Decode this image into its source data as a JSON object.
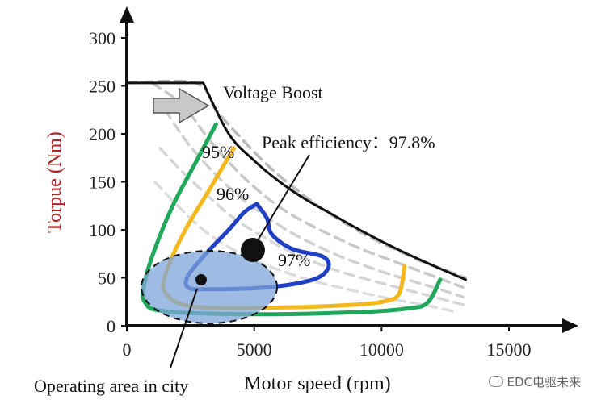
{
  "chart_data": {
    "type": "line",
    "xlabel": "Motor speed (rpm)",
    "ylabel": "Torpue (Nm)",
    "xlim": [
      0,
      15000
    ],
    "ylim": [
      0,
      300
    ],
    "xticks": [
      "0",
      "5000",
      "10000",
      "15000"
    ],
    "yticks": [
      "0",
      "50",
      "100",
      "150",
      "200",
      "250",
      "300"
    ],
    "series": [
      {
        "color": "#111111",
        "points": [
          [
            0,
            253
          ],
          [
            3000,
            253
          ],
          [
            4000,
            200
          ],
          [
            5000,
            172
          ],
          [
            6000,
            150
          ],
          [
            7000,
            132
          ],
          [
            8000,
            117
          ],
          [
            9000,
            102
          ],
          [
            10000,
            88
          ],
          [
            11000,
            75
          ],
          [
            12000,
            63
          ],
          [
            13300,
            48
          ]
        ]
      },
      {
        "color": "#bbbbbb",
        "dashed": true,
        "points": [
          [
            0,
            253
          ],
          [
            2700,
            253
          ],
          [
            3500,
            225
          ],
          [
            4500,
            195
          ],
          [
            5500,
            168
          ],
          [
            6500,
            145
          ],
          [
            7500,
            125
          ],
          [
            8500,
            108
          ],
          [
            9500,
            93
          ],
          [
            10500,
            80
          ],
          [
            11500,
            68
          ],
          [
            12500,
            58
          ],
          [
            13300,
            50
          ]
        ]
      },
      {
        "color": "#c8c8c8",
        "dashed": true,
        "points": [
          [
            1000,
            253
          ],
          [
            2200,
            230
          ],
          [
            3200,
            195
          ],
          [
            4200,
            165
          ],
          [
            5200,
            140
          ],
          [
            6200,
            120
          ],
          [
            7200,
            105
          ],
          [
            8200,
            92
          ],
          [
            9200,
            80
          ],
          [
            10200,
            70
          ],
          [
            11200,
            60
          ],
          [
            12200,
            50
          ],
          [
            13200,
            40
          ]
        ]
      },
      {
        "color": "#d0d0d0",
        "dashed": true,
        "points": [
          [
            1500,
            225
          ],
          [
            2400,
            190
          ],
          [
            3400,
            160
          ],
          [
            4400,
            135
          ],
          [
            5400,
            115
          ],
          [
            6400,
            98
          ],
          [
            7400,
            84
          ],
          [
            8400,
            72
          ],
          [
            9400,
            62
          ],
          [
            10400,
            53
          ],
          [
            11400,
            45
          ],
          [
            12400,
            37
          ],
          [
            13200,
            30
          ]
        ]
      },
      {
        "color": "#d6d6d6",
        "dashed": true,
        "points": [
          [
            1300,
            185
          ],
          [
            2200,
            160
          ],
          [
            3200,
            135
          ],
          [
            4200,
            112
          ],
          [
            5200,
            95
          ],
          [
            6200,
            80
          ],
          [
            7200,
            68
          ],
          [
            8200,
            58
          ],
          [
            9200,
            50
          ],
          [
            10200,
            43
          ],
          [
            11200,
            36
          ],
          [
            12200,
            29
          ],
          [
            13200,
            22
          ]
        ]
      },
      {
        "color": "#dcdcdc",
        "dashed": true,
        "points": [
          [
            1100,
            150
          ],
          [
            2000,
            125
          ],
          [
            3000,
            100
          ],
          [
            4000,
            82
          ],
          [
            5000,
            68
          ],
          [
            6000,
            58
          ],
          [
            7000,
            49
          ],
          [
            8000,
            42
          ],
          [
            9000,
            36
          ],
          [
            10000,
            30
          ],
          [
            11000,
            25
          ],
          [
            12000,
            20
          ],
          [
            13000,
            14
          ]
        ]
      },
      {
        "name": "95%",
        "color": "#1fa85a",
        "points": [
          [
            3500,
            210
          ],
          [
            2700,
            170
          ],
          [
            1800,
            125
          ],
          [
            1100,
            80
          ],
          [
            700,
            45
          ],
          [
            700,
            25
          ],
          [
            1500,
            15
          ],
          [
            5000,
            12
          ],
          [
            9000,
            14
          ],
          [
            11000,
            18
          ],
          [
            11800,
            24
          ],
          [
            12300,
            48
          ]
        ]
      },
      {
        "name": "96%",
        "color": "#f5b81c",
        "points": [
          [
            4200,
            185
          ],
          [
            3200,
            140
          ],
          [
            2300,
            100
          ],
          [
            1600,
            60
          ],
          [
            1500,
            35
          ],
          [
            2600,
            20
          ],
          [
            6000,
            19
          ],
          [
            9000,
            22
          ],
          [
            10200,
            26
          ],
          [
            10700,
            34
          ],
          [
            10900,
            62
          ]
        ]
      },
      {
        "name": "97%",
        "color": "#1f3fc6",
        "points": [
          [
            5100,
            127
          ],
          [
            4600,
            118
          ],
          [
            4000,
            100
          ],
          [
            3100,
            75
          ],
          [
            2400,
            52
          ],
          [
            2400,
            40
          ],
          [
            3100,
            38
          ],
          [
            5500,
            40
          ],
          [
            7300,
            48
          ],
          [
            7900,
            60
          ],
          [
            7700,
            72
          ],
          [
            6500,
            80
          ],
          [
            5700,
            95
          ],
          [
            5500,
            112
          ],
          [
            5100,
            127
          ]
        ]
      }
    ],
    "annotations": [
      "Voltage Boost",
      "Peak efficiency：97.8%",
      "Operating area in city"
    ],
    "peak_point": [
      5000,
      78
    ],
    "city_area_center": [
      3000,
      45
    ]
  },
  "labels": {
    "voltage_boost": "Voltage Boost",
    "peak": "Peak efficiency：97.8%",
    "city": "Operating area in city",
    "pct95": "95%",
    "pct96": "96%",
    "pct97": "97%",
    "watermark": "EDC电驱未来"
  },
  "colors": {
    "city_fill": "#7ea6d9",
    "boost_arrow": "#c8c8c8"
  }
}
